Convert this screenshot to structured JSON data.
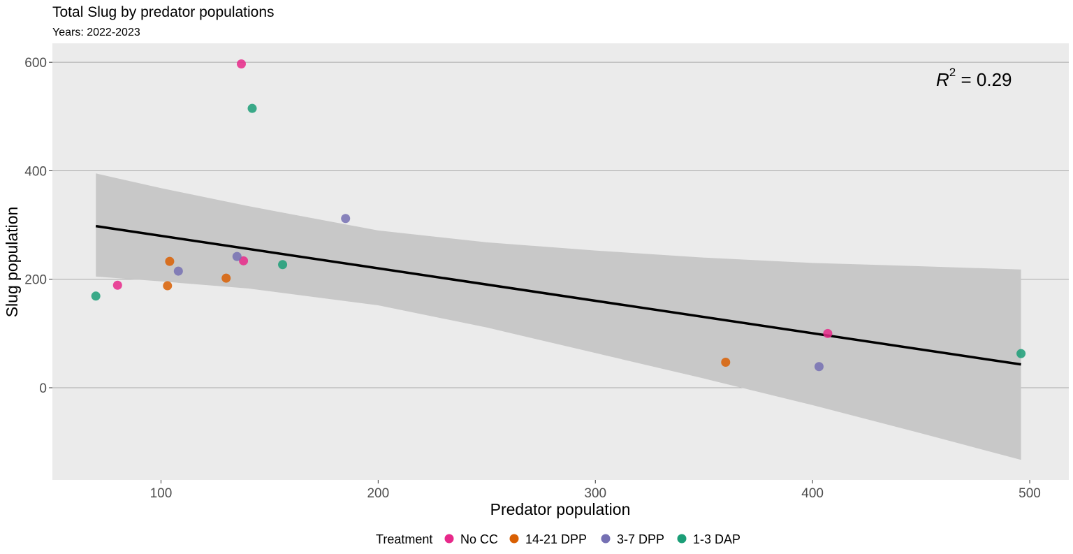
{
  "chart_data": {
    "type": "scatter",
    "title": "Total Slug by predator populations",
    "subtitle": "Years: 2022-2023",
    "xlabel": "Predator population",
    "ylabel": "Slug population",
    "xlim": [
      50,
      518
    ],
    "ylim": [
      -170,
      635
    ],
    "x_ticks": [
      100,
      200,
      300,
      400,
      500
    ],
    "y_ticks": [
      0,
      200,
      400,
      600
    ],
    "grid": "horizontal-major",
    "legend": {
      "title": "Treatment",
      "placement": "bottom",
      "entries": [
        {
          "label": "No CC",
          "color": "#E7298A"
        },
        {
          "label": "14-21 DPP",
          "color": "#D95F02"
        },
        {
          "label": "3-7 DPP",
          "color": "#7570B3"
        },
        {
          "label": "1-3 DAP",
          "color": "#1B9E77"
        }
      ]
    },
    "annotation": {
      "r_symbol": "R",
      "exponent": "2",
      "text": " = 0.29"
    },
    "series": [
      {
        "treatment": "No CC",
        "color": "#E7298A",
        "points": [
          {
            "x": 80,
            "y": 189
          },
          {
            "x": 137,
            "y": 597
          },
          {
            "x": 138,
            "y": 234
          },
          {
            "x": 407,
            "y": 100
          }
        ]
      },
      {
        "treatment": "14-21 DPP",
        "color": "#D95F02",
        "points": [
          {
            "x": 103,
            "y": 188
          },
          {
            "x": 104,
            "y": 233
          },
          {
            "x": 130,
            "y": 202
          },
          {
            "x": 360,
            "y": 47
          }
        ]
      },
      {
        "treatment": "3-7 DPP",
        "color": "#7570B3",
        "points": [
          {
            "x": 108,
            "y": 215
          },
          {
            "x": 135,
            "y": 242
          },
          {
            "x": 185,
            "y": 312
          },
          {
            "x": 403,
            "y": 39
          }
        ]
      },
      {
        "treatment": "1-3 DAP",
        "color": "#1B9E77",
        "points": [
          {
            "x": 70,
            "y": 169
          },
          {
            "x": 142,
            "y": 515
          },
          {
            "x": 156,
            "y": 227
          },
          {
            "x": 496,
            "y": 63
          }
        ]
      }
    ],
    "trend_line": {
      "x": [
        70,
        496
      ],
      "y": [
        298,
        43
      ]
    },
    "confidence_band": {
      "x": [
        70,
        100,
        140,
        200,
        250,
        300,
        350,
        400,
        450,
        496
      ],
      "upper": [
        395,
        368,
        335,
        290,
        268,
        253,
        240,
        230,
        224,
        218
      ],
      "lower": [
        205,
        196,
        183,
        152,
        111,
        64,
        17,
        -32,
        -84,
        -133
      ]
    },
    "colors": {
      "panel": "#EBEBEB",
      "band": "#C8C8C8",
      "gridline": "#A9A9A9",
      "trend": "#000000"
    }
  }
}
